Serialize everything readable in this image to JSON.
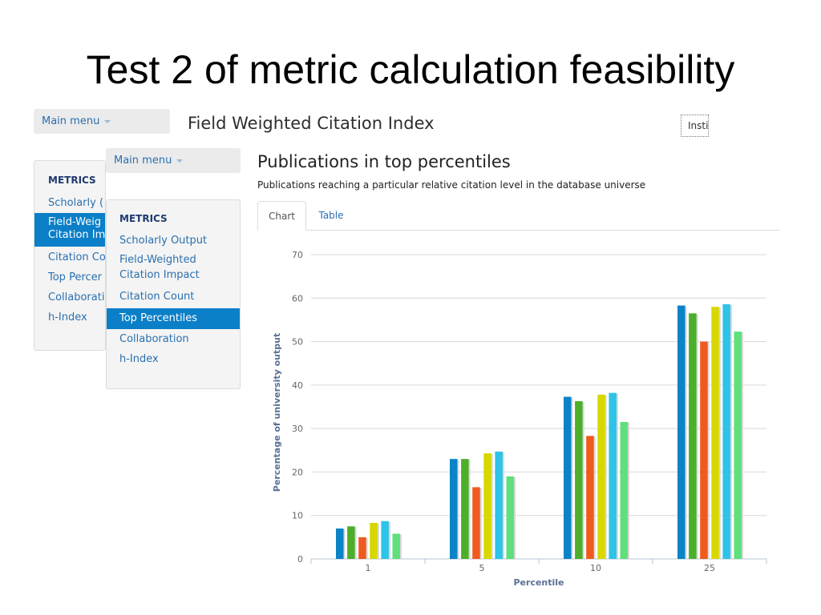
{
  "slide": {
    "title": "Test 2 of metric calculation feasibility"
  },
  "back_window": {
    "menu_label": "Main menu",
    "heading": "METRICS",
    "items": [
      "Scholarly (",
      "Field-Weig",
      "Citation Im",
      "Citation Co",
      "Top Percer",
      "Collaborati",
      "h-Index"
    ],
    "page_title": "Field Weighted Citation Index",
    "institution_field": "Insti"
  },
  "front_window": {
    "menu_label": "Main menu",
    "heading": "METRICS",
    "items": [
      {
        "label": "Scholarly Output",
        "active": false
      },
      {
        "label": "Field-Weighted\nCitation Impact",
        "active": false
      },
      {
        "label": "Citation Count",
        "active": false
      },
      {
        "label": "Top Percentiles",
        "active": true
      },
      {
        "label": "Collaboration",
        "active": false
      },
      {
        "label": "h-Index",
        "active": false
      }
    ],
    "section_title": "Publications in top percentiles",
    "section_subtitle": "Publications reaching a particular relative citation level in the database universe",
    "tabs": {
      "chart": "Chart",
      "table": "Table",
      "selected": "chart"
    }
  },
  "chart_data": {
    "type": "bar",
    "categories": [
      "1",
      "5",
      "10",
      "25"
    ],
    "series": [
      {
        "color": "#0a84c6",
        "values": [
          7.0,
          23.0,
          37.3,
          58.3
        ]
      },
      {
        "color": "#4caf2a",
        "values": [
          7.5,
          23.0,
          36.3,
          56.5
        ]
      },
      {
        "color": "#f05a1e",
        "values": [
          5.0,
          16.5,
          28.3,
          50.0
        ]
      },
      {
        "color": "#d8d800",
        "values": [
          8.3,
          24.3,
          37.8,
          58.0
        ]
      },
      {
        "color": "#2ec3e8",
        "values": [
          8.7,
          24.7,
          38.2,
          58.6
        ]
      },
      {
        "color": "#5fe07a",
        "values": [
          5.8,
          19.0,
          31.5,
          52.3
        ]
      }
    ],
    "title": "",
    "xlabel": "Percentile",
    "ylabel": "Percentage of university output",
    "ylim": [
      0,
      70
    ],
    "yticks": [
      0,
      10,
      20,
      30,
      40,
      50,
      60,
      70
    ],
    "grid": true,
    "legend": "none"
  }
}
